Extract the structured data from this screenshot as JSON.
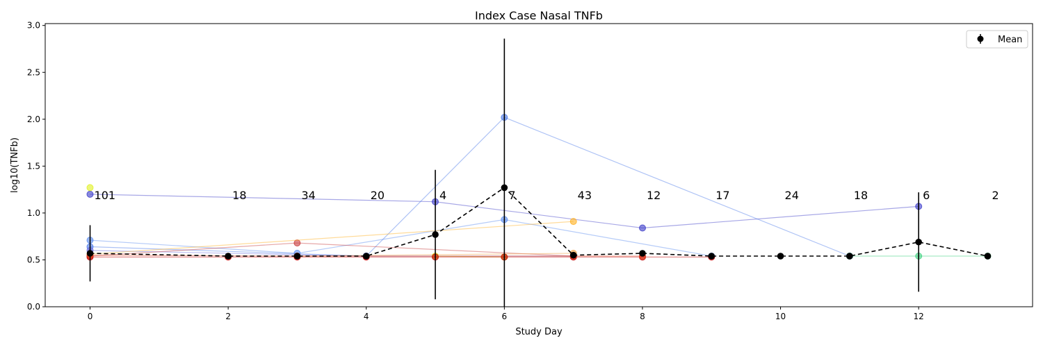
{
  "chart_data": {
    "type": "line",
    "title": "Index Case Nasal TNFb",
    "xlabel": "Study Day",
    "ylabel": "log10(TNFb)",
    "xlim": [
      -0.65,
      13.65
    ],
    "ylim": [
      0.0,
      3.02
    ],
    "xticks": [
      0,
      2,
      4,
      6,
      8,
      10,
      12
    ],
    "yticks": [
      0.0,
      0.5,
      1.0,
      1.5,
      2.0,
      2.5,
      3.0
    ],
    "grid": false,
    "legend": {
      "position": "top-right",
      "label": "Mean"
    },
    "count_labels": [
      {
        "x": 0.0,
        "text": "101"
      },
      {
        "x": 2.0,
        "text": "18"
      },
      {
        "x": 3.0,
        "text": "34"
      },
      {
        "x": 4.0,
        "text": "20"
      },
      {
        "x": 5.0,
        "text": "4"
      },
      {
        "x": 6.0,
        "text": "7"
      },
      {
        "x": 7.0,
        "text": "43"
      },
      {
        "x": 8.0,
        "text": "12"
      },
      {
        "x": 9.0,
        "text": "17"
      },
      {
        "x": 10.0,
        "text": "24"
      },
      {
        "x": 11.0,
        "text": "18"
      },
      {
        "x": 12.0,
        "text": "6"
      },
      {
        "x": 13.0,
        "text": "2"
      }
    ],
    "count_label_y": 1.19,
    "mean": {
      "x": [
        0,
        2,
        3,
        4,
        5,
        6,
        7,
        8,
        9,
        10,
        11,
        12,
        13
      ],
      "y": [
        0.57,
        0.54,
        0.54,
        0.54,
        0.77,
        1.27,
        0.55,
        0.57,
        0.54,
        0.54,
        0.54,
        0.69,
        0.54
      ],
      "err": [
        0.3,
        0.0,
        0.0,
        0.0,
        0.69,
        1.59,
        0.0,
        0.0,
        0.0,
        0.0,
        0.0,
        0.53,
        0.0
      ]
    },
    "series": [
      {
        "color": "#3b3bc8",
        "x": [
          0,
          5,
          8,
          12
        ],
        "y": [
          1.2,
          1.12,
          0.84,
          1.07
        ]
      },
      {
        "color": "#4a78e8",
        "x": [
          0,
          4,
          6,
          11
        ],
        "y": [
          0.64,
          0.54,
          2.02,
          0.54
        ]
      },
      {
        "color": "#5a8cf0",
        "x": [
          0,
          3,
          6,
          9
        ],
        "y": [
          0.71,
          0.57,
          0.93,
          0.54
        ]
      },
      {
        "color": "#6a6ae0",
        "x": [
          0,
          4,
          7
        ],
        "y": [
          0.6,
          0.54,
          0.54
        ]
      },
      {
        "color": "#c83c3c",
        "x": [
          0,
          3,
          7
        ],
        "y": [
          0.54,
          0.68,
          0.54
        ]
      },
      {
        "color": "#ffb020",
        "x": [
          0,
          7
        ],
        "y": [
          0.56,
          0.91
        ]
      },
      {
        "color": "#f0a040",
        "x": [
          3,
          7
        ],
        "y": [
          0.54,
          0.57
        ]
      },
      {
        "color": "#e0f020",
        "x": [
          0
        ],
        "y": [
          1.27
        ]
      },
      {
        "color": "#d4e020",
        "x": [
          5,
          6
        ],
        "y": [
          0.54,
          0.53
        ]
      },
      {
        "color": "#40d080",
        "x": [
          11,
          12,
          13
        ],
        "y": [
          0.54,
          0.54,
          0.54
        ]
      },
      {
        "color": "#c00000",
        "x": [
          0,
          2,
          3,
          4,
          5,
          6,
          7,
          8,
          9
        ],
        "y": [
          0.53,
          0.53,
          0.53,
          0.53,
          0.53,
          0.53,
          0.53,
          0.53,
          0.53
        ]
      },
      {
        "color": "#e04020",
        "x": [
          0,
          3,
          7,
          8
        ],
        "y": [
          0.55,
          0.54,
          0.54,
          0.54
        ]
      }
    ]
  }
}
